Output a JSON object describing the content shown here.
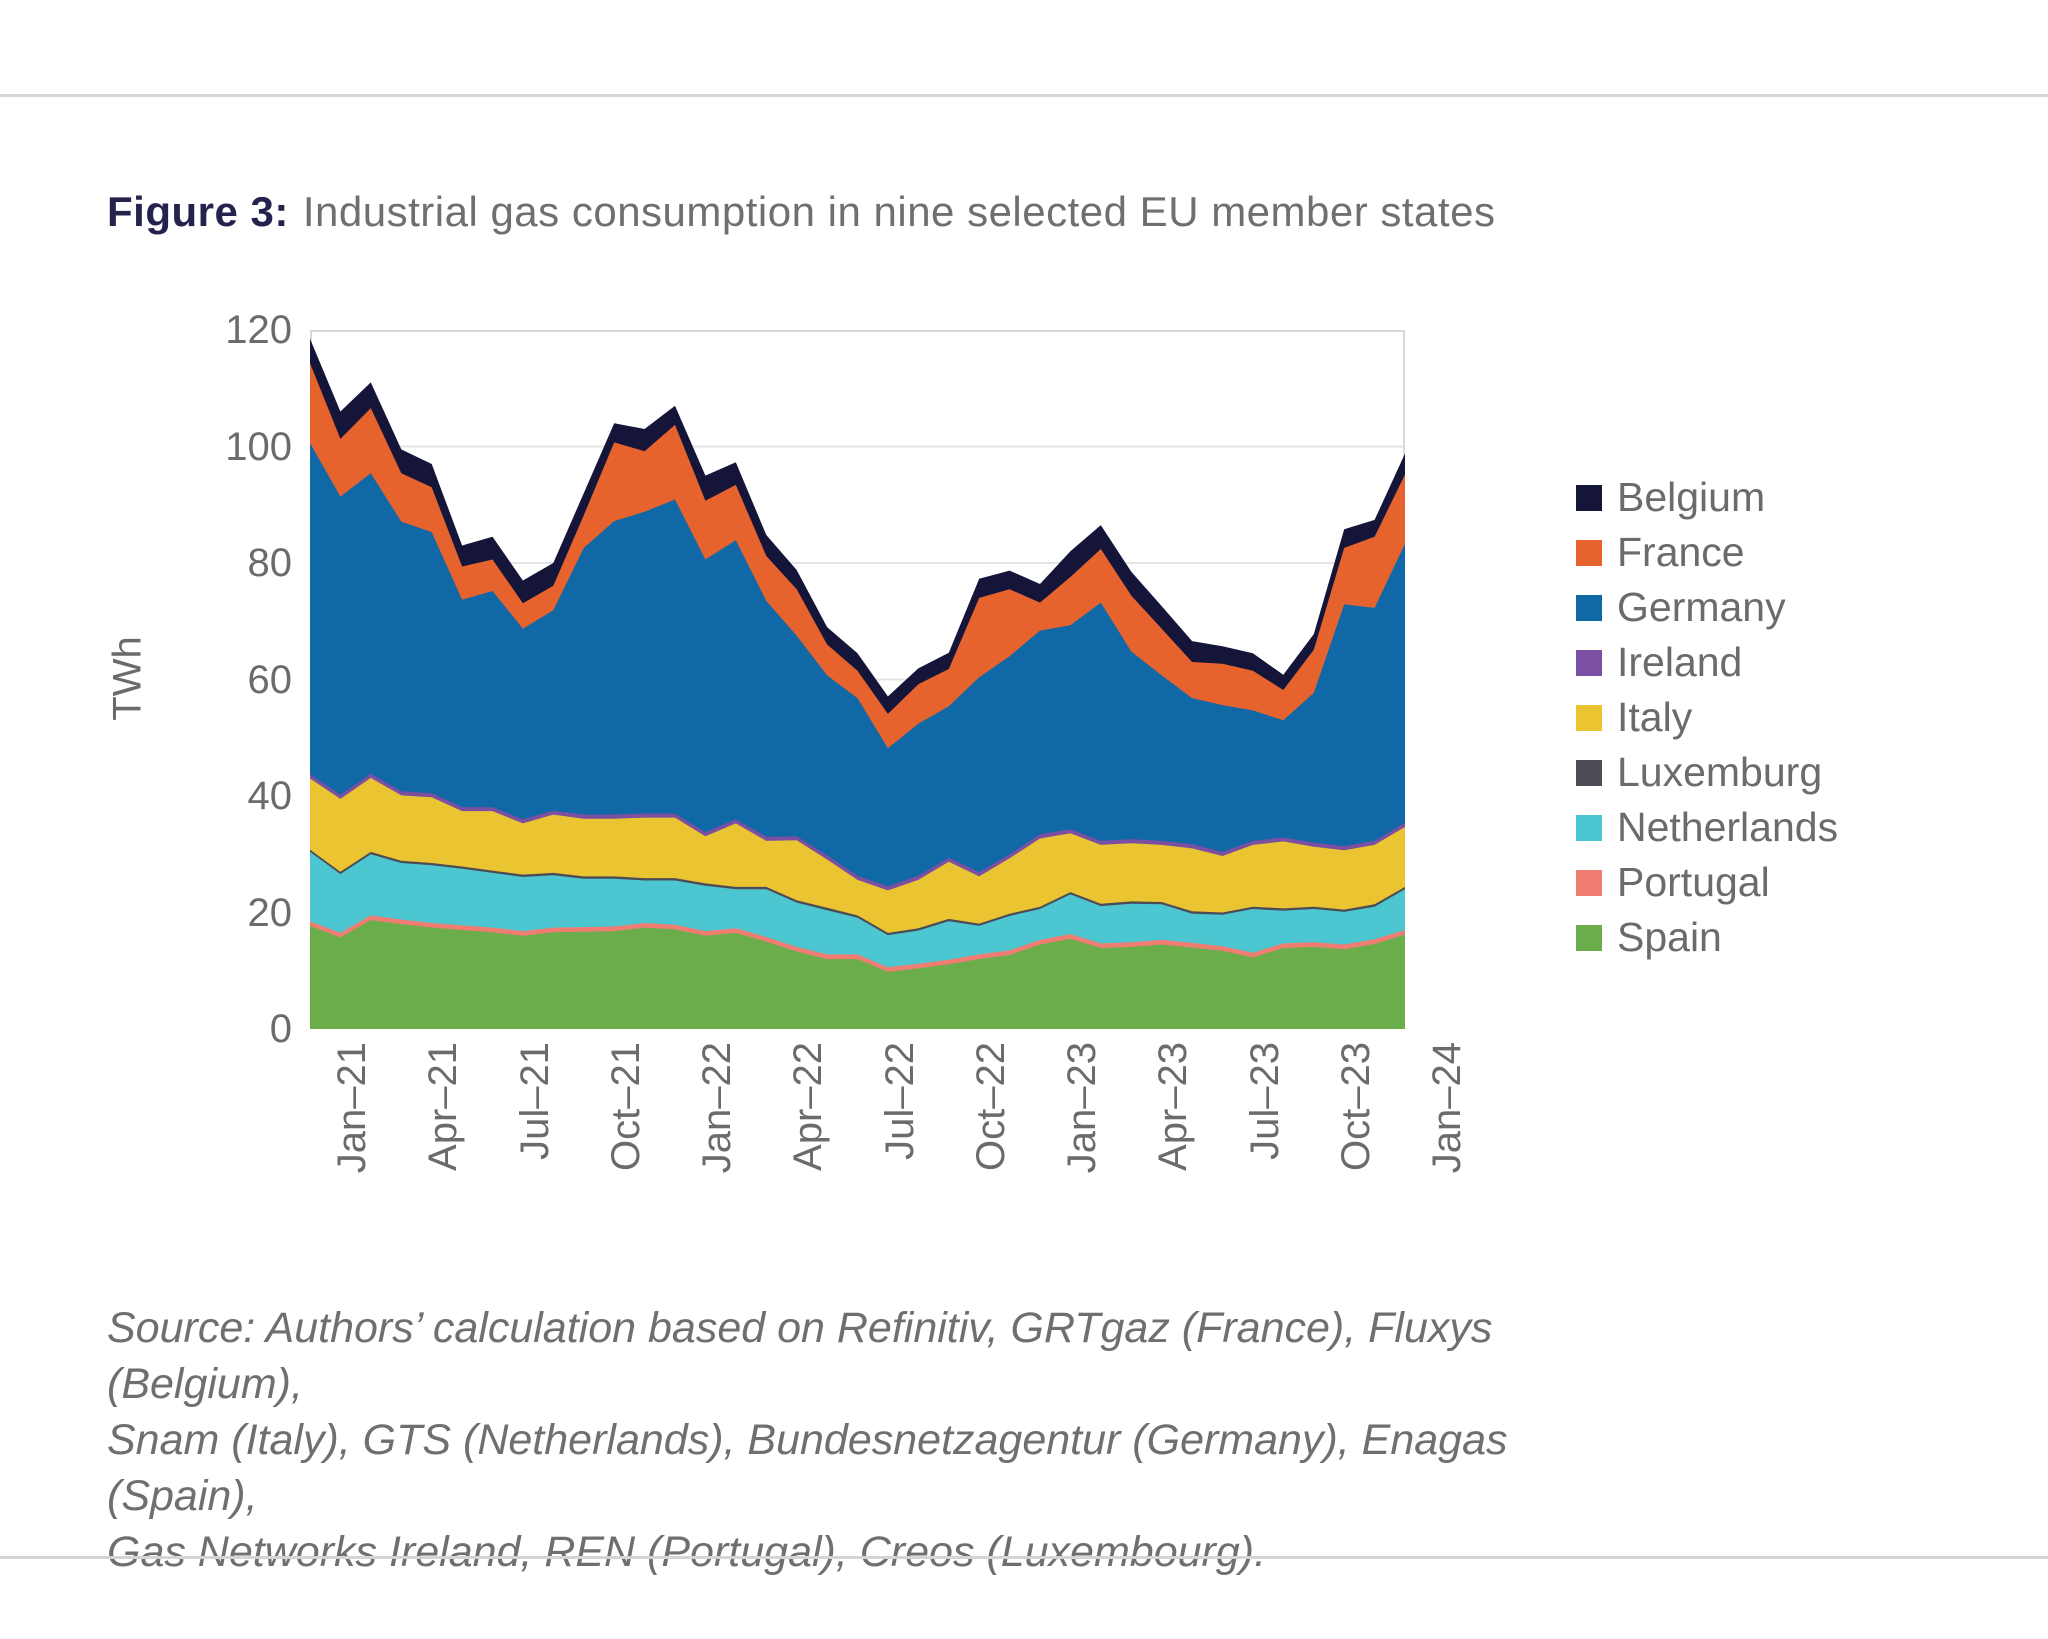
{
  "page": {
    "title_prefix": "Figure 3:",
    "title_text": "Industrial gas consumption in nine selected EU member states",
    "source_lines": [
      "Source: Authors’ calculation based on Refinitiv, GRTgaz (France), Fluxys (Belgium),",
      "Snam (Italy), GTS (Netherlands), Bundesnetzagentur (Germany), Enagas (Spain),",
      "Gas Networks Ireland, REN (Portugal), Creos (Luxembourg)."
    ]
  },
  "chart_data": {
    "type": "area",
    "stacked": true,
    "title": "Industrial gas consumption in nine selected EU member states",
    "xlabel": "",
    "ylabel": "TWh",
    "ylim": [
      0,
      120
    ],
    "y_ticks": [
      0,
      20,
      40,
      60,
      80,
      100,
      120
    ],
    "grid": true,
    "legend_position": "right",
    "x": [
      "Jan–21",
      "Feb–21",
      "Mar–21",
      "Apr–21",
      "May–21",
      "Jun–21",
      "Jul–21",
      "Aug–21",
      "Sep–21",
      "Oct–21",
      "Nov–21",
      "Dec–21",
      "Jan–22",
      "Feb–22",
      "Mar–22",
      "Apr–22",
      "May–22",
      "Jun–22",
      "Jul–22",
      "Aug–22",
      "Sep–22",
      "Oct–22",
      "Nov–22",
      "Dec–22",
      "Jan–23",
      "Feb–23",
      "Mar–23",
      "Apr–23",
      "May–23",
      "Jun–23",
      "Jul–23",
      "Aug–23",
      "Sep–23",
      "Oct–23",
      "Nov–23",
      "Dec–23",
      "Jan–24"
    ],
    "x_tick_labels": [
      "Jan–21",
      "Apr–21",
      "Jul–21",
      "Oct–21",
      "Jan–22",
      "Apr–22",
      "Jul–22",
      "Oct–22",
      "Jan–23",
      "Apr–23",
      "Jul–23",
      "Oct–23",
      "Jan–24"
    ],
    "x_tick_step": 3,
    "colors": {
      "grid": "#e4e4e4",
      "frame": "#d9d9d9",
      "title_accent": "#23234e",
      "text_gray": "#6b6b6b"
    },
    "series": [
      {
        "name": "Spain",
        "color": "#6bad4a",
        "values": [
          17.7,
          15.7,
          18.7,
          18,
          17.4,
          17,
          16.6,
          16,
          16.6,
          16.7,
          16.8,
          17.4,
          17.1,
          16,
          16.5,
          15,
          13.3,
          12,
          12,
          9.8,
          10.4,
          11.1,
          12,
          12.7,
          14.5,
          15.5,
          13.9,
          14.1,
          14.5,
          14,
          13.4,
          12.3,
          13.9,
          14.1,
          13.7,
          14.6,
          16.2
        ]
      },
      {
        "name": "Portugal",
        "color": "#f07d72",
        "values": [
          0.8,
          0.8,
          0.8,
          0.8,
          0.8,
          0.8,
          0.8,
          0.8,
          0.8,
          0.8,
          0.8,
          0.8,
          0.8,
          0.8,
          0.8,
          0.8,
          0.8,
          0.8,
          0.8,
          0.8,
          0.8,
          0.8,
          0.8,
          0.8,
          0.8,
          0.8,
          0.8,
          0.8,
          0.8,
          0.8,
          0.8,
          0.8,
          0.8,
          0.8,
          0.8,
          0.8,
          0.8
        ]
      },
      {
        "name": "Netherlands",
        "color": "#4cc7d1",
        "values": [
          11.9,
          10.1,
          10.5,
          9.7,
          9.9,
          9.7,
          9.4,
          9.3,
          9,
          8.3,
          8.2,
          7.3,
          7.6,
          7.8,
          6.7,
          8.2,
          7.6,
          7.6,
          6.3,
          5.5,
          5.7,
          6.6,
          4.9,
          5.9,
          5.3,
          6.8,
          6.4,
          6.6,
          6.1,
          5,
          5.4,
          7.5,
          5.6,
          5.7,
          5.6,
          5.6,
          7
        ]
      },
      {
        "name": "Luxemburg",
        "color": "#4c4c57",
        "values": [
          0.4,
          0.4,
          0.4,
          0.4,
          0.4,
          0.4,
          0.4,
          0.4,
          0.4,
          0.4,
          0.4,
          0.4,
          0.4,
          0.4,
          0.4,
          0.4,
          0.4,
          0.4,
          0.4,
          0.4,
          0.4,
          0.4,
          0.4,
          0.4,
          0.4,
          0.4,
          0.4,
          0.4,
          0.4,
          0.4,
          0.4,
          0.4,
          0.4,
          0.4,
          0.4,
          0.4,
          0.4
        ]
      },
      {
        "name": "Italy",
        "color": "#eac431",
        "values": [
          12.2,
          12.5,
          12.7,
          11.2,
          11.3,
          9.5,
          10.2,
          8.8,
          10,
          9.9,
          9.9,
          10.4,
          10.4,
          8.1,
          10.9,
          7.9,
          10.3,
          8.3,
          6.1,
          7.3,
          8.3,
          9.8,
          8.1,
          9.5,
          11.7,
          10.1,
          10.1,
          10,
          9.8,
          10.8,
          9.7,
          10.6,
          11.5,
          10.3,
          10.2,
          10.2,
          10.3
        ]
      },
      {
        "name": "Ireland",
        "color": "#7b4fa1",
        "values": [
          0.7,
          0.7,
          0.7,
          0.7,
          0.7,
          0.7,
          0.7,
          0.7,
          0.7,
          0.7,
          0.7,
          0.7,
          0.7,
          0.7,
          0.7,
          0.7,
          0.7,
          0.7,
          0.7,
          0.7,
          0.7,
          0.7,
          0.7,
          0.7,
          0.7,
          0.7,
          0.7,
          0.7,
          0.7,
          0.7,
          0.7,
          0.7,
          0.7,
          0.7,
          0.7,
          0.7,
          0.7
        ]
      },
      {
        "name": "Germany",
        "color": "#1068a6",
        "values": [
          56.9,
          51.2,
          51.6,
          46.3,
          44.8,
          35.6,
          37.1,
          32.7,
          34.4,
          45.8,
          50.4,
          51.8,
          53.9,
          46.8,
          47.9,
          40.5,
          34.4,
          30.9,
          30.5,
          23.7,
          26.1,
          26,
          33.5,
          34,
          35,
          35,
          40.9,
          32.2,
          28.4,
          25.1,
          25.2,
          22.4,
          20.1,
          25.7,
          41.5,
          40,
          47.9
        ]
      },
      {
        "name": "France",
        "color": "#e7632e",
        "values": [
          13.7,
          9.9,
          11.2,
          8.3,
          7.7,
          5.7,
          5.4,
          4.4,
          4.2,
          5.6,
          13.5,
          10.4,
          12.8,
          10.1,
          9.5,
          7.7,
          8,
          5.3,
          4.7,
          5.9,
          6.8,
          6.4,
          13.6,
          11.5,
          4.8,
          8.3,
          9.2,
          9.6,
          8,
          6.2,
          7.1,
          6.8,
          5.2,
          7.4,
          9.7,
          12.2,
          11.9
        ]
      },
      {
        "name": "Belgium",
        "color": "#15153a",
        "values": [
          4.2,
          4.7,
          4.4,
          4.1,
          4,
          3.6,
          3.9,
          3.9,
          3.9,
          3.8,
          3.3,
          3.8,
          3.3,
          4.3,
          3.9,
          3.6,
          3.3,
          3,
          3,
          3,
          2.7,
          2.8,
          3.3,
          3.2,
          3.2,
          4.4,
          4.1,
          4.1,
          3.9,
          3.6,
          3,
          3,
          2.6,
          2.7,
          3.2,
          2.9,
          3.6
        ]
      }
    ],
    "legend_items_top_to_bottom": [
      "Belgium",
      "France",
      "Germany",
      "Ireland",
      "Italy",
      "Luxemburg",
      "Netherlands",
      "Portugal",
      "Spain"
    ]
  }
}
